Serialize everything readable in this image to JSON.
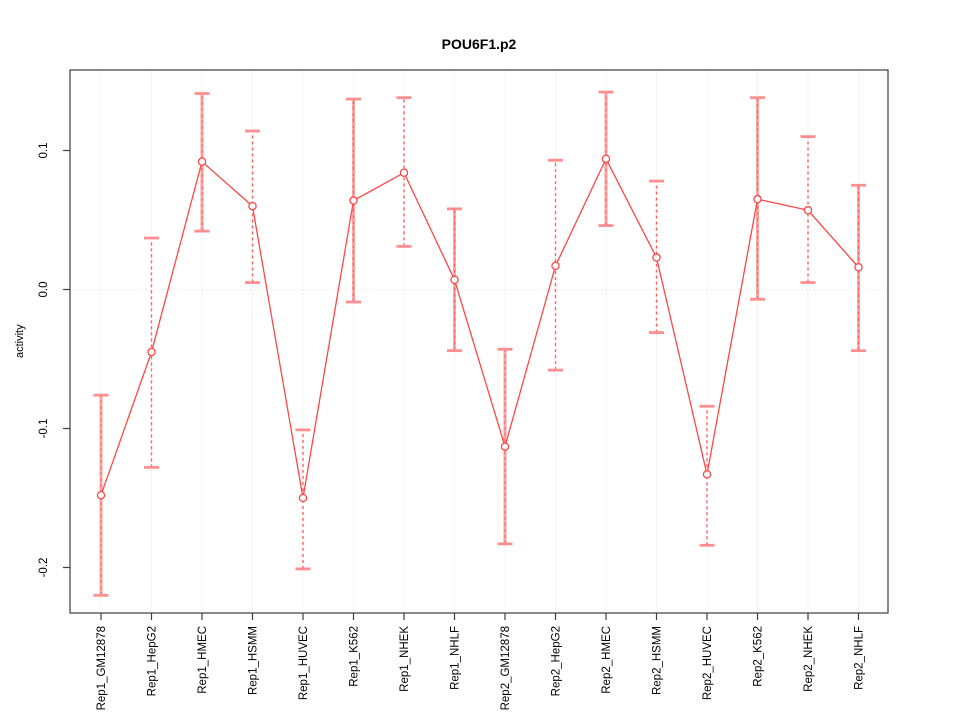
{
  "chart_data": {
    "type": "line",
    "title": "POU6F1.p2",
    "ylabel": "activity",
    "xlabel": "",
    "legend": "none",
    "grid": "dotted vertical gridline at each category; dotted horizontal gridline at y=0",
    "yticks": [
      0.1,
      0.0,
      -0.1,
      -0.2
    ],
    "ylim": [
      -0.233,
      0.158
    ],
    "categories": [
      "Rep1_GM12878",
      "Rep1_HepG2",
      "Rep1_HMEC",
      "Rep1_HSMM",
      "Rep1_HUVEC",
      "Rep1_K562",
      "Rep1_NHEK",
      "Rep1_NHLF",
      "Rep2_GM12878",
      "Rep2_HepG2",
      "Rep2_HMEC",
      "Rep2_HSMM",
      "Rep2_HUVEC",
      "Rep2_K562",
      "Rep2_NHEK",
      "Rep2_NHLF"
    ],
    "series": [
      {
        "name": "activity",
        "values": [
          -0.148,
          -0.045,
          0.092,
          0.06,
          -0.15,
          0.064,
          0.084,
          0.007,
          -0.113,
          0.017,
          0.094,
          0.023,
          -0.133,
          0.065,
          0.057,
          0.016
        ]
      }
    ],
    "error_low": [
      -0.22,
      -0.128,
      0.042,
      0.005,
      -0.201,
      -0.009,
      0.031,
      -0.044,
      -0.183,
      -0.058,
      0.046,
      -0.031,
      -0.184,
      -0.007,
      0.005,
      -0.044
    ],
    "error_high": [
      -0.076,
      0.037,
      0.141,
      0.114,
      -0.101,
      0.137,
      0.138,
      0.058,
      -0.043,
      0.093,
      0.142,
      0.078,
      -0.084,
      0.138,
      0.11,
      0.075
    ],
    "bar_styles": [
      "solid",
      "dashed",
      "solid",
      "dashed",
      "dashed",
      "solid",
      "dashed",
      "solid",
      "solid",
      "dashed",
      "solid",
      "dashed",
      "dashed",
      "solid",
      "dashed",
      "solid"
    ],
    "colors": {
      "line": "#ff4646",
      "marker": "#ff4646",
      "errorbar_solid": "#ffa2a2",
      "errorbar_dashed": "#ff6060",
      "cap": "#ff8f8f",
      "grid": "#d9d9d9",
      "axis": "#3c3c3c",
      "background": "#ffffff"
    }
  }
}
